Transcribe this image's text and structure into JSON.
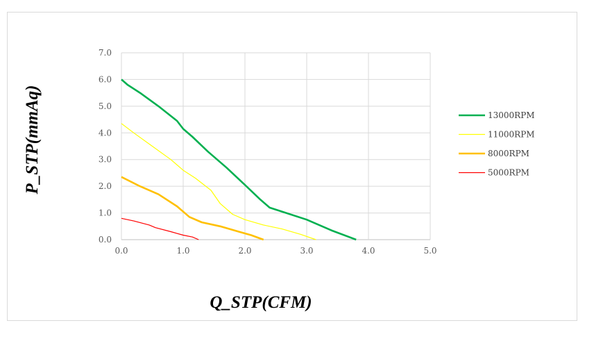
{
  "chart_data": {
    "type": "line",
    "title": "",
    "xlabel": "Q_STP(CFM)",
    "ylabel": "P_STP(mmAq)",
    "xlim": [
      0,
      5
    ],
    "ylim": [
      0,
      7
    ],
    "xticks": [
      "0.0",
      "1.0",
      "2.0",
      "3.0",
      "4.0",
      "5.0"
    ],
    "yticks": [
      "0.0",
      "1.0",
      "2.0",
      "3.0",
      "4.0",
      "5.0",
      "6.0",
      "7.0"
    ],
    "grid": true,
    "legend_position": "right",
    "series": [
      {
        "name": "13000RPM",
        "color": "#00b050",
        "points": [
          [
            0,
            6.0
          ],
          [
            0.1,
            5.8
          ],
          [
            0.3,
            5.5
          ],
          [
            0.6,
            5.0
          ],
          [
            0.9,
            4.45
          ],
          [
            1.0,
            4.15
          ],
          [
            1.15,
            3.85
          ],
          [
            1.4,
            3.3
          ],
          [
            1.7,
            2.7
          ],
          [
            2.0,
            2.05
          ],
          [
            2.25,
            1.5
          ],
          [
            2.4,
            1.2
          ],
          [
            2.6,
            1.05
          ],
          [
            3.0,
            0.75
          ],
          [
            3.4,
            0.35
          ],
          [
            3.8,
            0.0
          ]
        ]
      },
      {
        "name": "11000RPM",
        "color": "#ffff00",
        "points": [
          [
            0,
            4.35
          ],
          [
            0.2,
            4.0
          ],
          [
            0.5,
            3.5
          ],
          [
            0.8,
            3.0
          ],
          [
            1.0,
            2.6
          ],
          [
            1.2,
            2.3
          ],
          [
            1.45,
            1.85
          ],
          [
            1.6,
            1.35
          ],
          [
            1.8,
            0.95
          ],
          [
            2.0,
            0.75
          ],
          [
            2.3,
            0.55
          ],
          [
            2.6,
            0.4
          ],
          [
            2.9,
            0.2
          ],
          [
            3.15,
            0.0
          ]
        ]
      },
      {
        "name": "8000RPM",
        "color": "#ffc000",
        "points": [
          [
            0,
            2.35
          ],
          [
            0.3,
            2.0
          ],
          [
            0.6,
            1.7
          ],
          [
            0.9,
            1.25
          ],
          [
            1.1,
            0.85
          ],
          [
            1.3,
            0.65
          ],
          [
            1.6,
            0.5
          ],
          [
            1.9,
            0.3
          ],
          [
            2.1,
            0.17
          ],
          [
            2.3,
            0.0
          ]
        ]
      },
      {
        "name": "5000RPM",
        "color": "#ff0000",
        "points": [
          [
            0,
            0.8
          ],
          [
            0.2,
            0.7
          ],
          [
            0.45,
            0.55
          ],
          [
            0.55,
            0.45
          ],
          [
            0.8,
            0.3
          ],
          [
            1.0,
            0.17
          ],
          [
            1.15,
            0.1
          ],
          [
            1.25,
            0.0
          ]
        ]
      }
    ]
  }
}
